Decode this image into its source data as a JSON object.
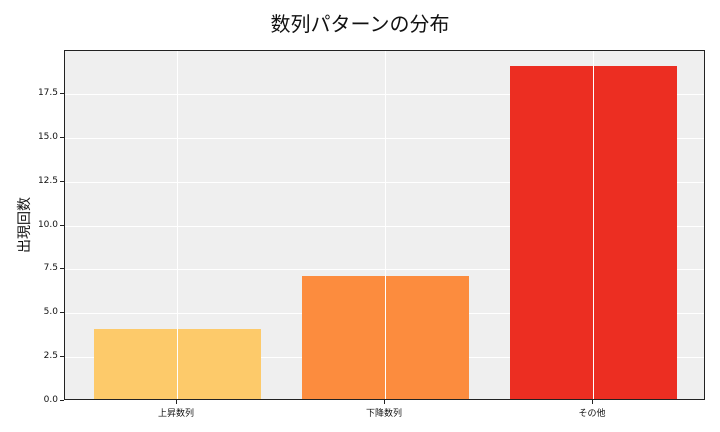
{
  "chart_data": {
    "type": "bar",
    "title": "数列パターンの分布",
    "xlabel": "",
    "ylabel": "出現回数",
    "categories": [
      "上昇数列",
      "下降数列",
      "その他"
    ],
    "values": [
      4,
      7,
      19
    ],
    "colors": [
      "#fdca6a",
      "#fc8c3e",
      "#ec2e22"
    ],
    "ylim": [
      0,
      19.95
    ],
    "yticks": [
      "0.0",
      "2.5",
      "5.0",
      "7.5",
      "10.0",
      "12.5",
      "15.0",
      "17.5"
    ],
    "grid": true,
    "legend": null
  }
}
